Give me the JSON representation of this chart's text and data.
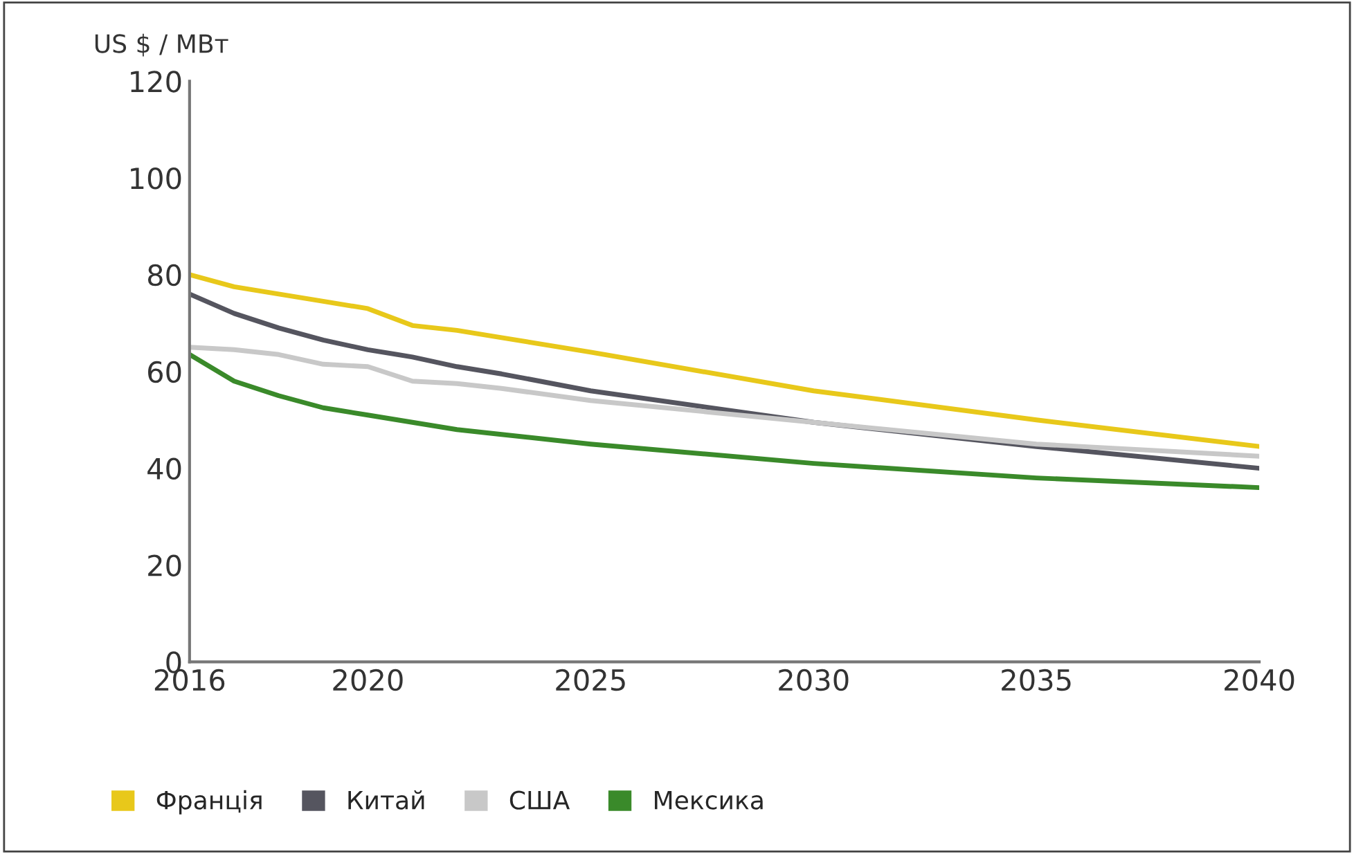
{
  "chart_data": {
    "type": "line",
    "ylabel": "US $ / МВт",
    "x": [
      2016,
      2017,
      2018,
      2019,
      2020,
      2021,
      2022,
      2023,
      2025,
      2030,
      2035,
      2040
    ],
    "series": [
      {
        "name": "Франція",
        "color": "#e8c81a",
        "values": [
          80,
          77.5,
          76,
          74.5,
          73,
          69.5,
          68.5,
          67,
          64,
          56,
          50,
          44.5
        ]
      },
      {
        "name": "Китай",
        "color": "#55555f",
        "values": [
          76,
          72,
          69,
          66.5,
          64.5,
          63,
          61,
          59.5,
          56,
          49.5,
          44.5,
          40
        ]
      },
      {
        "name": "США",
        "color": "#c8c8c8",
        "values": [
          65,
          64.5,
          63.5,
          61.5,
          61,
          58,
          57.5,
          56.5,
          54,
          49.5,
          45,
          42.5
        ]
      },
      {
        "name": "Мексика",
        "color": "#3a8a2a",
        "values": [
          63.5,
          58,
          55,
          52.5,
          51,
          49.5,
          48,
          47,
          45,
          41,
          38,
          36
        ]
      }
    ],
    "xlim": [
      2016,
      2040
    ],
    "xticks": [
      2016,
      2020,
      2025,
      2030,
      2035,
      2040
    ],
    "ylim": [
      0,
      120
    ],
    "yticks": [
      0,
      20,
      40,
      60,
      80,
      100,
      120
    ],
    "grid": false,
    "legend": "bottom",
    "marker": "none",
    "line_style": "solid"
  }
}
